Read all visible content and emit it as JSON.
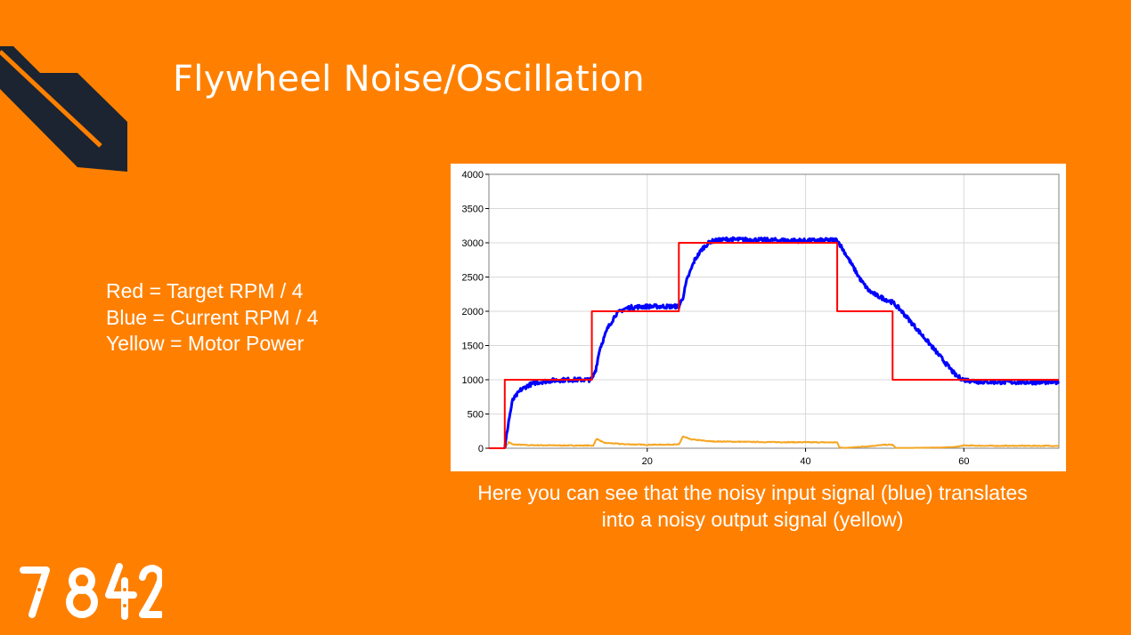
{
  "slide": {
    "title": "Flywheel Noise/Oscillation",
    "legend": [
      "Red = Target RPM / 4",
      "Blue = Current RPM / 4",
      "Yellow = Motor Power"
    ],
    "caption_line1": "Here you can see that the noisy input signal (blue) translates",
    "caption_line2": "into a noisy output signal (yellow)",
    "logo_text": "7842",
    "colors": {
      "background": "#ff8000",
      "corner_shape": "#1b2430",
      "text": "#ffffff"
    }
  },
  "chart_data": {
    "type": "line",
    "xlim": [
      0,
      72
    ],
    "ylim": [
      0,
      4000
    ],
    "x_ticks": [
      20,
      40,
      60
    ],
    "y_ticks": [
      0,
      500,
      1000,
      1500,
      2000,
      2500,
      3000,
      3500,
      4000
    ],
    "grid": true,
    "series": [
      {
        "color": "#ff0000",
        "x": [
          0,
          2,
          2,
          13,
          13,
          24,
          24,
          44,
          44,
          51,
          51,
          72
        ],
        "values": [
          0,
          0,
          1000,
          1000,
          2000,
          2000,
          3000,
          3000,
          2000,
          2000,
          1000,
          1000
        ]
      },
      {
        "color": "#0000ff",
        "x": [
          2,
          2.5,
          3,
          4,
          5,
          6,
          8,
          10,
          12,
          13,
          13.5,
          14,
          15,
          16,
          17,
          18,
          20,
          22,
          24,
          24.5,
          25,
          26,
          27,
          28,
          30,
          35,
          40,
          44,
          45,
          46,
          47,
          48,
          49,
          50,
          51,
          52,
          54,
          56,
          58,
          59,
          60,
          62,
          66,
          72
        ],
        "values": [
          0,
          400,
          700,
          850,
          920,
          960,
          990,
          1000,
          1000,
          1000,
          1150,
          1450,
          1750,
          1950,
          2030,
          2060,
          2070,
          2070,
          2070,
          2200,
          2450,
          2750,
          2920,
          3020,
          3050,
          3040,
          3030,
          3040,
          2850,
          2650,
          2450,
          2300,
          2230,
          2180,
          2130,
          2020,
          1750,
          1480,
          1200,
          1060,
          1000,
          970,
          965,
          965
        ],
        "noise": 30
      },
      {
        "color": "#f5a623",
        "x": [
          2,
          2.5,
          3,
          5,
          10,
          13.2,
          13.6,
          14.5,
          17,
          20,
          24,
          24.5,
          25.5,
          28,
          35,
          44,
          44.3,
          45,
          48,
          50,
          51,
          51.4,
          53,
          57,
          59,
          60,
          63,
          72
        ],
        "values": [
          0,
          90,
          55,
          45,
          40,
          40,
          140,
          80,
          60,
          50,
          55,
          170,
          130,
          100,
          90,
          85,
          10,
          5,
          30,
          50,
          50,
          5,
          5,
          10,
          20,
          40,
          35,
          35
        ],
        "noise": 6
      }
    ]
  }
}
